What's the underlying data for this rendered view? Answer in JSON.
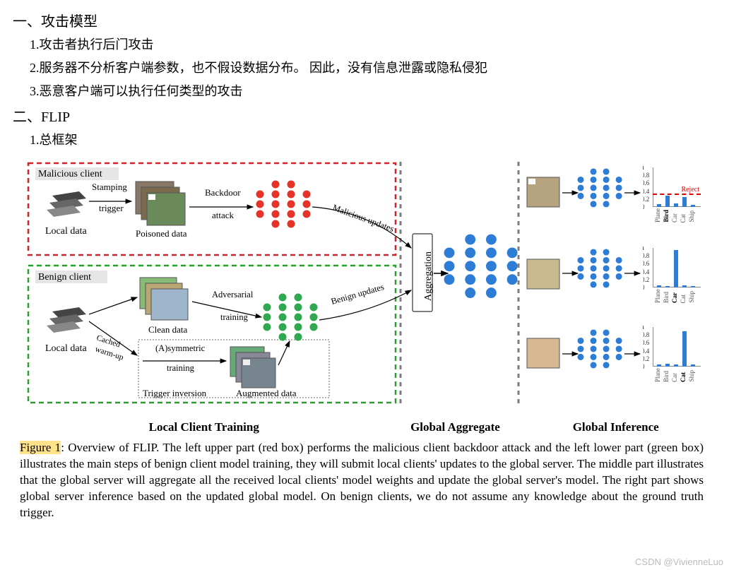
{
  "headings": {
    "section1": "一、攻击模型",
    "s1_i1": "1.攻击者执行后门攻击",
    "s1_i2": "2.服务器不分析客户端参数，也不假设数据分布。 因此，没有信息泄露或隐私侵犯",
    "s1_i3": "3.恶意客户端可以执行任何类型的攻击",
    "section2": "二、FLIP",
    "s2_i1": "1.总框架"
  },
  "diagram": {
    "malicious_label": "Malicious client",
    "benign_label": "Benign client",
    "local_data": "Local data",
    "stamping": "Stamping",
    "trigger": "trigger",
    "poisoned": "Poisoned data",
    "clean": "Clean data",
    "backdoor": "Backdoor",
    "attack": "attack",
    "malicious_updates": "Malicious updates",
    "benign_updates": "Benign updates",
    "adversarial": "Adversarial",
    "training": "training",
    "cached": "Cached",
    "warmup": "warm-up",
    "asymmetric": "(A)symmetric",
    "asymm_training": "training",
    "trigger_inv": "Trigger inversion",
    "augmented": "Augmented data",
    "aggregation": "Aggregation",
    "reject": "Reject",
    "section_labels": [
      "Local Client Training",
      "Global Aggregate",
      "Global Inference"
    ],
    "colors": {
      "red": "#e6332a",
      "green": "#2fa84f",
      "blue": "#1a63c8",
      "blue_fill": "#2d7cd6",
      "grey": "#808080",
      "dash": "#7d7d7d",
      "red_dash": "#d2232a",
      "green_dash": "#26a02a"
    },
    "charts": {
      "yticks": [
        0,
        0.2,
        0.4,
        0.6,
        0.8,
        1
      ],
      "xlabels": [
        "Plane",
        "Bird",
        "Car",
        "Cat",
        "Ship"
      ],
      "chart1": {
        "values": [
          0.08,
          0.28,
          0.09,
          0.25,
          0.05
        ],
        "threshold": 0.3,
        "bold_idx": 1,
        "bar_color": "#2d7cd6",
        "has_reject": true
      },
      "chart2": {
        "values": [
          0.05,
          0.04,
          0.95,
          0.05,
          0.04
        ],
        "bold_idx": 2,
        "bar_color": "#2d7cd6"
      },
      "chart3": {
        "values": [
          0.05,
          0.08,
          0.05,
          0.9,
          0.05
        ],
        "bold_idx": 3,
        "bar_color": "#2d7cd6"
      }
    }
  },
  "caption": {
    "fig_label": "Figure 1",
    "text": ": Overview of FLIP. The left upper part (red box) performs the malicious client backdoor attack and the left lower part (green box) illustrates the main steps of benign client model training, they will submit local clients' updates to the global server. The middle part illustrates that the global server will aggregate all the received local clients' model weights and update the global server's model. The right part shows global server inference based on the updated global model. On benign clients, we do not assume any knowledge about the ground truth trigger."
  },
  "watermark": "CSDN @VivienneLuo"
}
